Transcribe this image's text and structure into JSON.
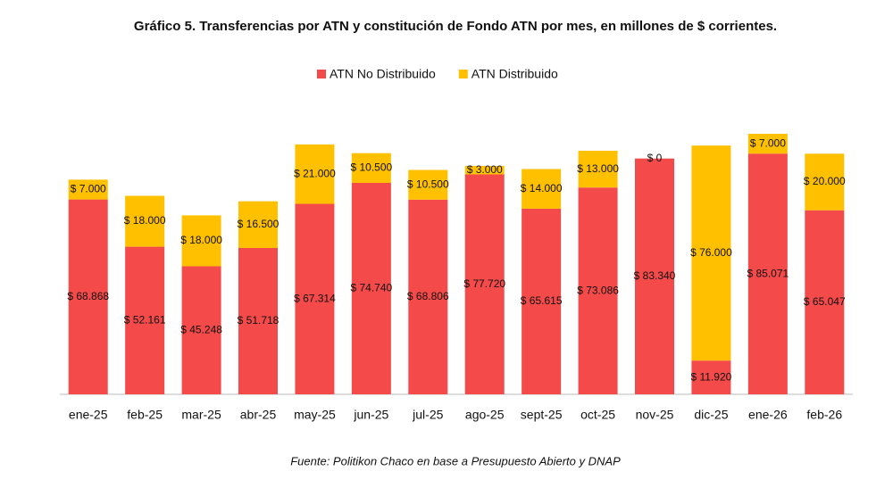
{
  "chart_data": {
    "type": "stacked-bar",
    "title": "Gráfico 5. Transferencias por ATN y constitución de Fondo ATN por mes, en millones de $ corrientes.",
    "source": "Fuente: Politikon Chaco en base a Presupuesto Abierto y DNAP",
    "legend": "top",
    "categories": [
      "ene-25",
      "feb-25",
      "mar-25",
      "abr-25",
      "may-25",
      "jun-25",
      "jul-25",
      "ago-25",
      "sept-25",
      "oct-25",
      "nov-25",
      "dic-25",
      "ene-26",
      "feb-26"
    ],
    "series": [
      {
        "name": "ATN No Distribuido",
        "color": "#f44a4a",
        "values": [
          68868,
          52161,
          45248,
          51718,
          67314,
          74740,
          68806,
          77720,
          65615,
          73086,
          83340,
          11920,
          85071,
          65047
        ],
        "value_labels": [
          "$ 68.868",
          "$ 52.161",
          "$ 45.248",
          "$ 51.718",
          "$ 67.314",
          "$ 74.740",
          "$ 68.806",
          "$ 77.720",
          "$ 65.615",
          "$ 73.086",
          "$ 83.340",
          "$ 11.920",
          "$ 85.071",
          "$ 65.047"
        ]
      },
      {
        "name": "ATN Distribuido",
        "color": "#ffc000",
        "values": [
          7000,
          18000,
          18000,
          16500,
          21000,
          10500,
          10500,
          3000,
          14000,
          13000,
          0,
          76000,
          7000,
          20000
        ],
        "value_labels": [
          "$ 7.000",
          "$ 18.000",
          "$ 18.000",
          "$ 16.500",
          "$ 21.000",
          "$ 10.500",
          "$ 10.500",
          "$ 3.000",
          "$ 14.000",
          "$ 13.000",
          "$ 0",
          "$ 76.000",
          "$ 7.000",
          "$ 20.000"
        ]
      }
    ]
  }
}
